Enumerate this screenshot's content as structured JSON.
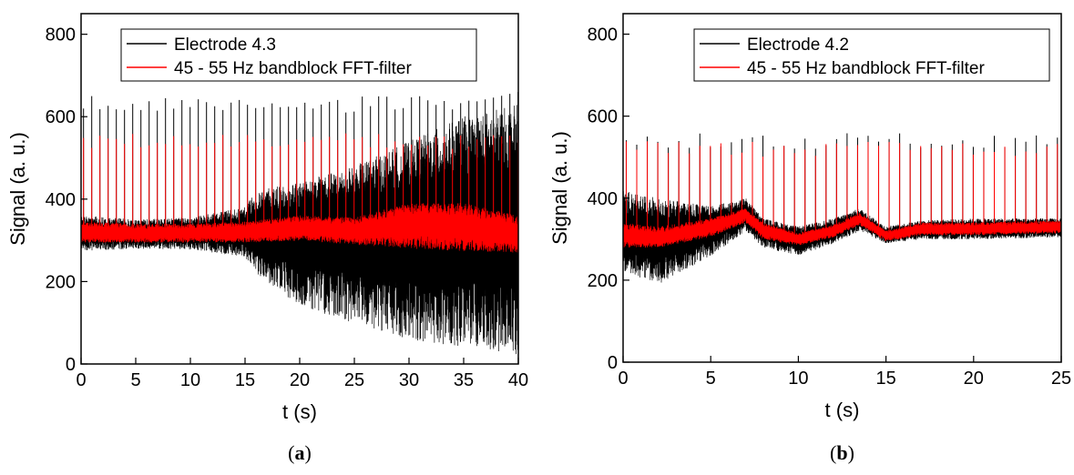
{
  "chart_data": [
    {
      "type": "line",
      "panel_label": "(a)",
      "panel_prefix": "(",
      "panel_letter": "a",
      "panel_suffix": ")",
      "xlabel": "t (s)",
      "ylabel": "Signal (a. u.)",
      "xlim": [
        0,
        40
      ],
      "ylim": [
        0,
        850
      ],
      "xticks": [
        0,
        5,
        10,
        15,
        20,
        25,
        30,
        35,
        40
      ],
      "yticks": [
        0,
        200,
        400,
        600,
        800
      ],
      "grid": false,
      "legend_position": "top",
      "series": [
        {
          "name": "Electrode 4.3",
          "color": "#000000",
          "x": [
            0,
            5,
            10,
            15,
            16,
            20,
            25,
            30,
            35,
            40
          ],
          "center": [
            320,
            315,
            318,
            320,
            318,
            320,
            330,
            335,
            340,
            330
          ],
          "low": [
            275,
            280,
            278,
            260,
            220,
            140,
            100,
            60,
            40,
            20
          ],
          "high": [
            360,
            350,
            355,
            380,
            420,
            440,
            480,
            540,
            600,
            630
          ],
          "spike_period": 0.75,
          "spike_peak": 650
        },
        {
          "name": "45 - 55 Hz bandblock FFT-filter",
          "color": "#ff0000",
          "x": [
            0,
            5,
            10,
            15,
            20,
            25,
            30,
            35,
            40
          ],
          "center": [
            320,
            315,
            318,
            320,
            330,
            320,
            340,
            330,
            315
          ],
          "low": [
            295,
            295,
            295,
            295,
            300,
            290,
            280,
            275,
            270
          ],
          "high": [
            345,
            340,
            340,
            345,
            360,
            355,
            390,
            390,
            360
          ],
          "spike_period": 0.75,
          "spike_peak": 560
        }
      ]
    },
    {
      "type": "line",
      "panel_label": "(b)",
      "panel_prefix": "(",
      "panel_letter": "b",
      "panel_suffix": ")",
      "xlabel": "t (s)",
      "ylabel": "Signal (a. u.)",
      "xlim": [
        0,
        25
      ],
      "ylim": [
        0,
        850
      ],
      "xticks": [
        0,
        5,
        10,
        15,
        20,
        25
      ],
      "yticks": [
        0,
        200,
        400,
        600,
        800
      ],
      "grid": false,
      "legend_position": "top",
      "series": [
        {
          "name": "Electrode 4.2",
          "color": "#000000",
          "x": [
            0,
            2,
            5,
            7,
            8,
            10,
            12,
            13.5,
            15,
            17,
            20,
            25
          ],
          "center": [
            310,
            300,
            330,
            360,
            320,
            300,
            320,
            350,
            310,
            325,
            325,
            330
          ],
          "low": [
            220,
            190,
            260,
            320,
            280,
            260,
            290,
            320,
            290,
            300,
            300,
            305
          ],
          "high": [
            420,
            400,
            380,
            400,
            350,
            330,
            350,
            375,
            330,
            345,
            350,
            350
          ],
          "spike_period": 0.6,
          "spike_peak": 560
        },
        {
          "name": "45 - 55 Hz bandblock FFT-filter",
          "color": "#ff0000",
          "x": [
            0,
            2,
            5,
            7,
            8,
            10,
            12,
            13.5,
            15,
            17,
            20,
            25
          ],
          "center": [
            310,
            300,
            330,
            360,
            320,
            300,
            320,
            350,
            310,
            325,
            325,
            330
          ],
          "low": [
            280,
            280,
            305,
            340,
            300,
            285,
            305,
            335,
            295,
            310,
            310,
            315
          ],
          "high": [
            340,
            330,
            350,
            375,
            340,
            315,
            335,
            365,
            320,
            340,
            340,
            345
          ],
          "spike_period": 0.6,
          "spike_peak": 540
        }
      ]
    }
  ]
}
